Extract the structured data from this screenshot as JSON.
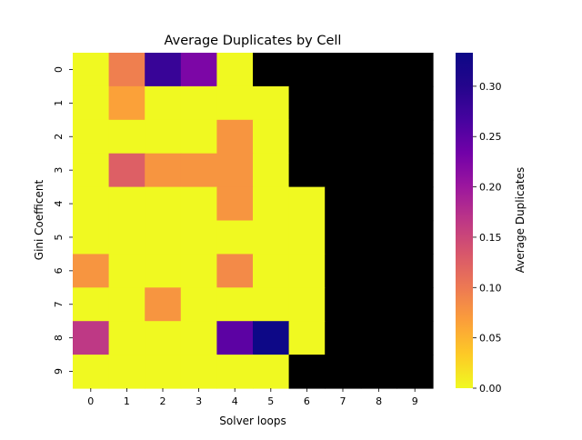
{
  "chart_data": {
    "type": "heatmap",
    "title": "Average Duplicates by Cell",
    "xlabel": "Solver loops",
    "ylabel": "Gini Coefficent",
    "x_categories": [
      "0",
      "1",
      "2",
      "3",
      "4",
      "5",
      "6",
      "7",
      "8",
      "9"
    ],
    "y_categories": [
      "0",
      "1",
      "2",
      "3",
      "4",
      "5",
      "6",
      "7",
      "8",
      "9"
    ],
    "colormap": "plasma_r",
    "missing_color": "#000000",
    "vmin": 0.0,
    "vmax": 0.3333,
    "colorbar": {
      "label": "Average Duplicates",
      "ticks": [
        "0.00",
        "0.05",
        "0.10",
        "0.15",
        "0.20",
        "0.25",
        "0.30"
      ]
    },
    "values": [
      [
        0.0,
        0.095,
        0.28,
        0.225,
        0.0,
        null,
        null,
        null,
        null,
        null
      ],
      [
        0.0,
        0.065,
        0.0,
        0.0,
        0.0,
        0.0,
        null,
        null,
        null,
        null
      ],
      [
        0.0,
        0.0,
        0.0,
        0.0,
        0.075,
        0.0,
        null,
        null,
        null,
        null
      ],
      [
        0.0,
        0.125,
        0.075,
        0.075,
        0.075,
        0.0,
        null,
        null,
        null,
        null
      ],
      [
        0.0,
        0.0,
        0.0,
        0.0,
        0.075,
        0.0,
        0.0,
        null,
        null,
        null
      ],
      [
        0.0,
        0.0,
        0.0,
        0.0,
        0.0,
        0.0,
        0.0,
        null,
        null,
        null
      ],
      [
        0.075,
        0.0,
        0.0,
        0.0,
        0.085,
        0.0,
        0.0,
        null,
        null,
        null
      ],
      [
        0.0,
        0.0,
        0.075,
        0.0,
        0.0,
        0.0,
        0.0,
        null,
        null,
        null
      ],
      [
        0.165,
        0.0,
        0.0,
        0.0,
        0.25,
        0.3333,
        0.0,
        null,
        null,
        null
      ],
      [
        0.0,
        0.0,
        0.0,
        0.0,
        0.0,
        0.0,
        null,
        null,
        null,
        null
      ]
    ]
  }
}
